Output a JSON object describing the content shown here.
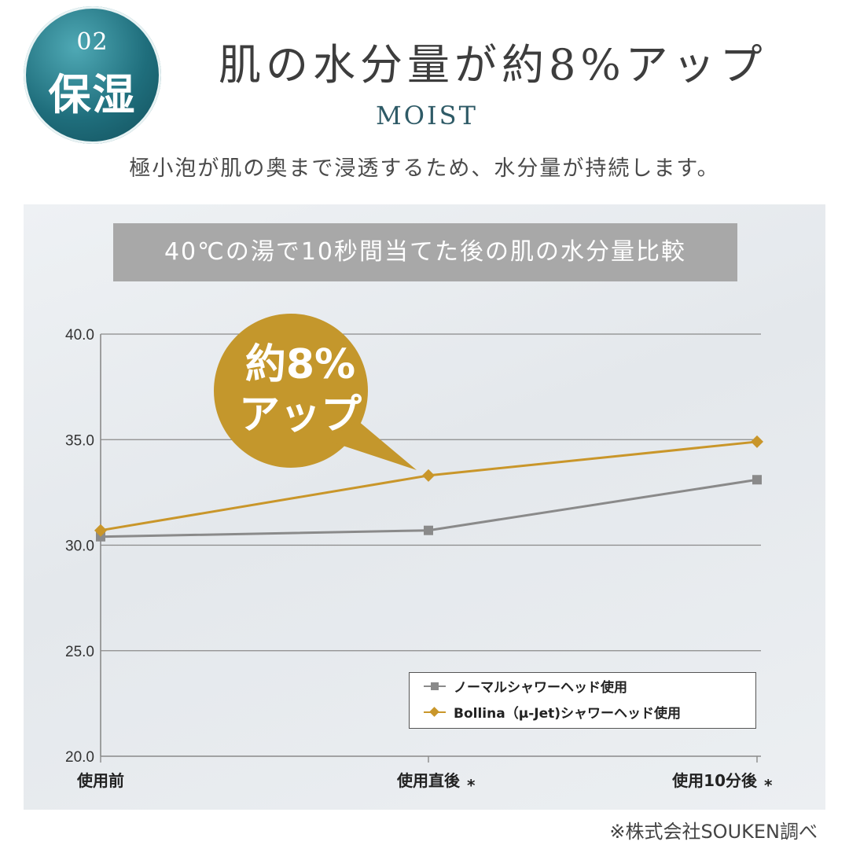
{
  "badge": {
    "number": "02",
    "label": "保湿"
  },
  "header": {
    "title": "肌の水分量が約8%アップ",
    "subtitle": "MOIST",
    "description": "極小泡が肌の奥まで浸透するため、水分量が持続します。"
  },
  "colors": {
    "normal": "#8a8a8a",
    "bollina": "#c9962a",
    "badge": "#1f6e7c",
    "callout": "#c4972c",
    "grid": "#8a8a8a",
    "title_bar": "#a8a8a8"
  },
  "callout": {
    "line1": "約8%",
    "line2": "アップ"
  },
  "chart_data": {
    "type": "line",
    "title": "40℃の湯で10秒間当てた後の肌の水分量比較",
    "categories": [
      "使用前",
      "使用直後",
      "使用10分後"
    ],
    "category_marks": [
      "",
      "*",
      "*"
    ],
    "ylim": [
      20.0,
      40.0
    ],
    "yticks": [
      "20.0",
      "25.0",
      "30.0",
      "35.0",
      "40.0"
    ],
    "grid": true,
    "legend_position": "bottom-right",
    "series": [
      {
        "name": "ノーマルシャワーヘッド使用",
        "marker": "square",
        "values": [
          30.4,
          30.7,
          33.1
        ]
      },
      {
        "name": "Bollina（μ-Jet)シャワーヘッド使用",
        "marker": "diamond",
        "values": [
          30.7,
          33.3,
          34.9
        ]
      }
    ]
  },
  "footer": {
    "source": "※株式会社SOUKEN調べ"
  }
}
